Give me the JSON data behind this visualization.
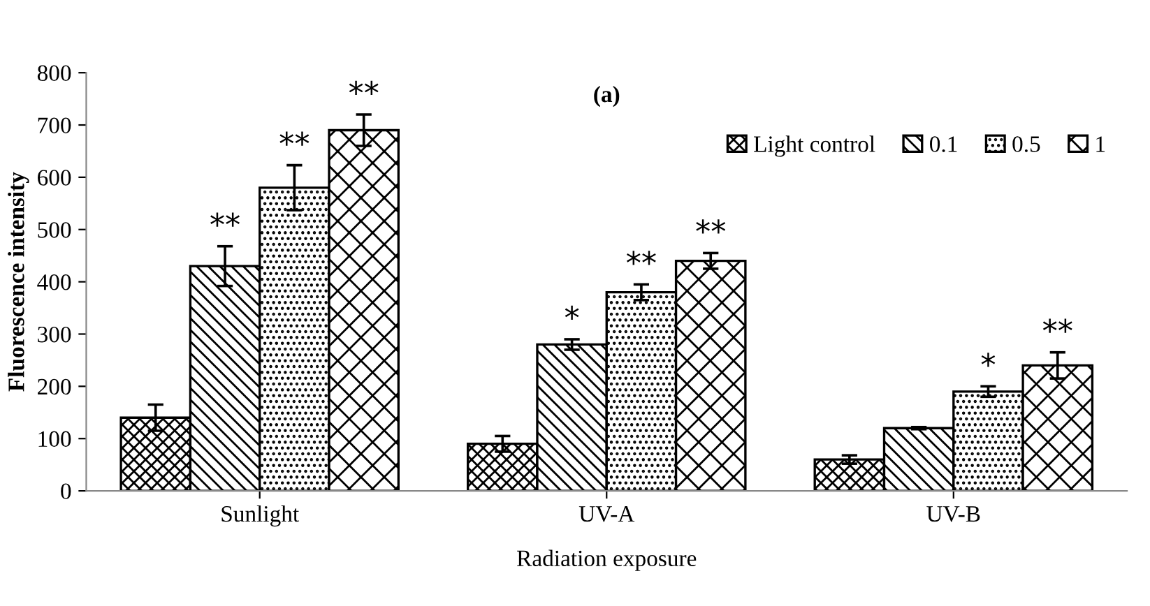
{
  "chart_data": {
    "type": "bar",
    "xlabel": "Radiation exposure",
    "ylabel": "Fluorescence intensity",
    "categories": [
      "Sunlight",
      "UV-A",
      "UV-B"
    ],
    "series": [
      {
        "name": "Light control",
        "color": "#000000",
        "values": [
          140,
          90,
          60
        ],
        "errors": [
          25,
          15,
          8
        ]
      },
      {
        "name": "0.1",
        "color": "#000000",
        "values": [
          430,
          280,
          120
        ],
        "errors": [
          38,
          10,
          2
        ],
        "value_labels": [
          "**",
          "*",
          null
        ]
      },
      {
        "name": "0.5",
        "color": "#000000",
        "values": [
          580,
          380,
          190
        ],
        "errors": [
          43,
          15,
          10
        ],
        "value_labels": [
          "**",
          "**",
          "*"
        ]
      },
      {
        "name": "1",
        "color": "#000000",
        "values": [
          690,
          440,
          240
        ],
        "errors": [
          30,
          15,
          25
        ],
        "value_labels": [
          "**",
          "**",
          "**"
        ]
      }
    ],
    "ylim": [
      0,
      800
    ],
    "yticks": [
      0,
      100,
      200,
      300,
      400,
      500,
      600,
      700,
      800
    ],
    "grid": false,
    "legend": "top right",
    "annotations": [
      "(a)"
    ]
  }
}
